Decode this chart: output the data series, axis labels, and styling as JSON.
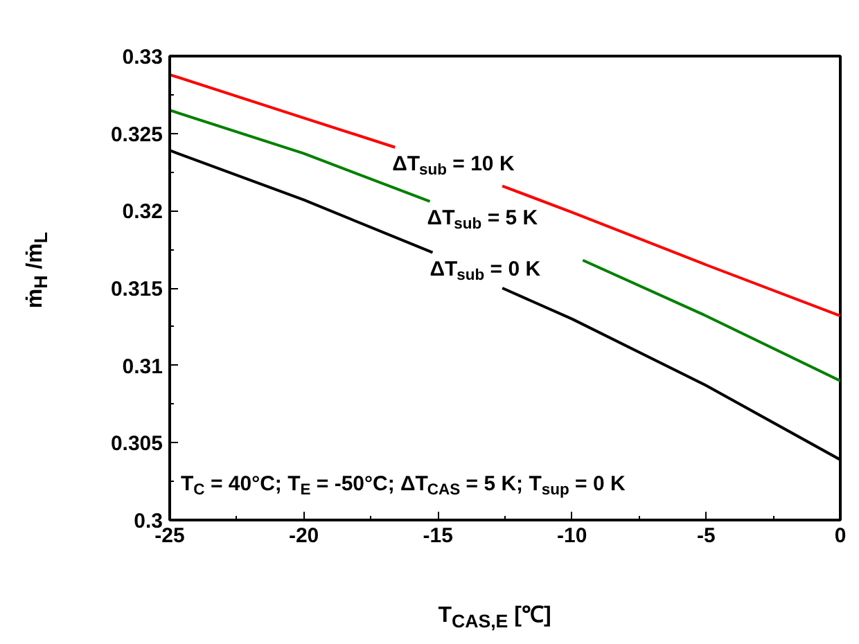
{
  "chart_data": {
    "type": "line",
    "xlabel": "T$_{CAS,E}$ [℃]",
    "ylabel": "ṁ$_{H}$ /ṁ$_{L}$",
    "xlim": [
      -25,
      0
    ],
    "ylim": [
      0.3,
      0.33
    ],
    "xticks": [
      -25,
      -20,
      -15,
      -10,
      -5,
      0
    ],
    "yticks": [
      0.3,
      0.305,
      0.31,
      0.315,
      0.32,
      0.325,
      0.33
    ],
    "grid": false,
    "legend": false,
    "marker": "none",
    "line_style": "solid",
    "series": [
      {
        "name": "ΔT$_{sub}$ = 10 K",
        "color": "#ff0000",
        "x": [
          -25,
          -20,
          -16.6,
          -14.5,
          -12.6,
          -10,
          -5,
          0
        ],
        "values": [
          0.3288,
          0.326,
          0.3241,
          null,
          0.3216,
          0.3199,
          0.3165,
          0.3132
        ]
      },
      {
        "name": "ΔT$_{sub}$ = 5 K",
        "color": "#008000",
        "x": [
          -25,
          -20,
          -15.3,
          -12.5,
          -9.6,
          -5,
          0
        ],
        "values": [
          0.3265,
          0.3237,
          0.3206,
          null,
          0.3168,
          0.3132,
          0.309
        ]
      },
      {
        "name": "ΔT$_{sub}$ = 0 K",
        "color": "#000000",
        "x": [
          -25,
          -20,
          -15.2,
          -14,
          -12.6,
          -10,
          -5,
          0
        ],
        "values": [
          0.3239,
          0.3207,
          0.3173,
          null,
          0.315,
          0.313,
          0.3087,
          0.3039
        ]
      }
    ],
    "annotations": [
      "T$_{C}$ = 40°C; T$_{E}$ = -50°C; ΔT$_{CAS}$ = 5 K; T$_{sup}$ = 0 K"
    ]
  }
}
